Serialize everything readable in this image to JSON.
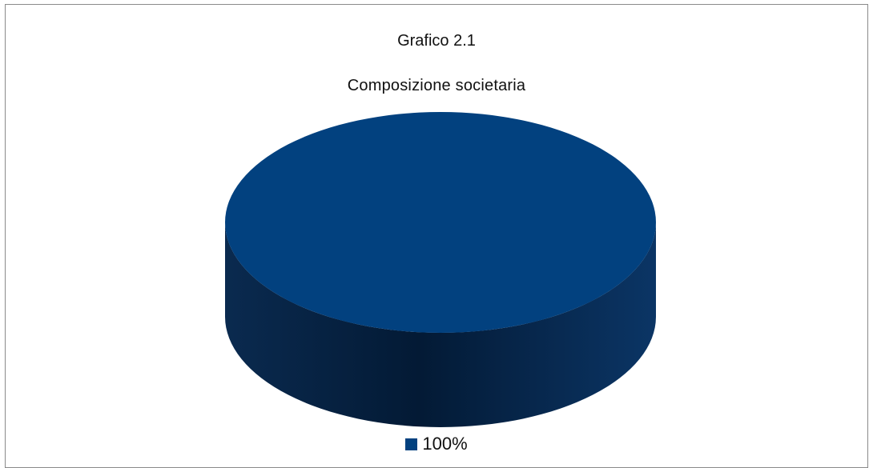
{
  "chart_data": {
    "type": "pie",
    "title": "Grafico 2.1",
    "subtitle": "Composizione societaria",
    "style": "3d",
    "slices": [
      {
        "label": "100%",
        "value": 100,
        "color": "#02417f"
      }
    ],
    "legend": {
      "position": "bottom",
      "entries": [
        "100%"
      ]
    }
  }
}
